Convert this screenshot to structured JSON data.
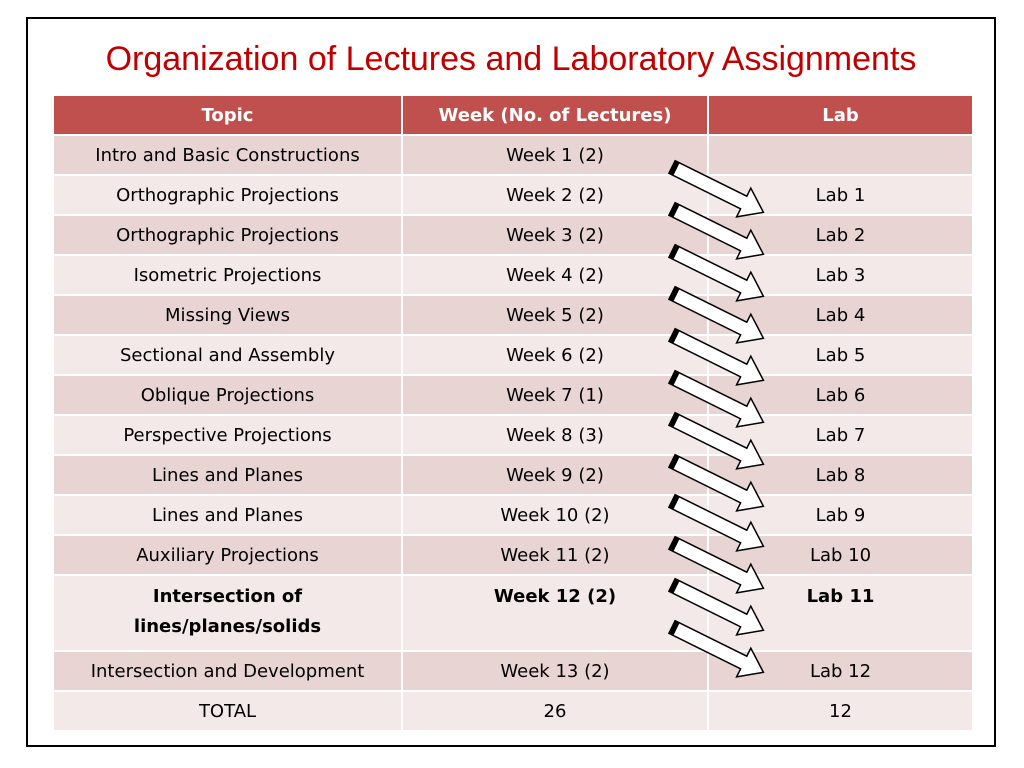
{
  "title": "Organization of Lectures and Laboratory Assignments",
  "table": {
    "headers": [
      "Topic",
      "Week (No. of Lectures)",
      "Lab"
    ],
    "rows": [
      {
        "topic": "Intro and Basic Constructions",
        "week": "Week 1 (2)",
        "lab": ""
      },
      {
        "topic": "Orthographic Projections",
        "week": "Week 2 (2)",
        "lab": "Lab 1"
      },
      {
        "topic": "Orthographic Projections",
        "week": "Week 3 (2)",
        "lab": "Lab 2"
      },
      {
        "topic": "Isometric Projections",
        "week": "Week 4 (2)",
        "lab": "Lab 3"
      },
      {
        "topic": "Missing Views",
        "week": "Week 5 (2)",
        "lab": "Lab 4"
      },
      {
        "topic": "Sectional and Assembly",
        "week": "Week 6 (2)",
        "lab": "Lab 5"
      },
      {
        "topic": "Oblique Projections",
        "week": "Week 7 (1)",
        "lab": "Lab 6"
      },
      {
        "topic": "Perspective Projections",
        "week": "Week 8 (3)",
        "lab": "Lab 7"
      },
      {
        "topic": "Lines and Planes",
        "week": "Week 9 (2)",
        "lab": "Lab 8"
      },
      {
        "topic": "Lines and Planes",
        "week": "Week 10 (2)",
        "lab": "Lab 9"
      },
      {
        "topic": "Auxiliary Projections",
        "week": "Week 11 (2)",
        "lab": "Lab 10"
      },
      {
        "topic": "Intersection of lines/planes/solids",
        "week": "Week 12 (2)",
        "lab": "Lab 11"
      },
      {
        "topic": "Intersection and Development",
        "week": "Week 13 (2)",
        "lab": "Lab 12"
      },
      {
        "topic": "TOTAL",
        "week": "26",
        "lab": "12"
      }
    ]
  },
  "arrow_count": 12,
  "colors": {
    "title": "#c00000",
    "header_bg": "#c0504d",
    "row_odd": "#e9d4d4",
    "row_even": "#f4e9e9"
  }
}
